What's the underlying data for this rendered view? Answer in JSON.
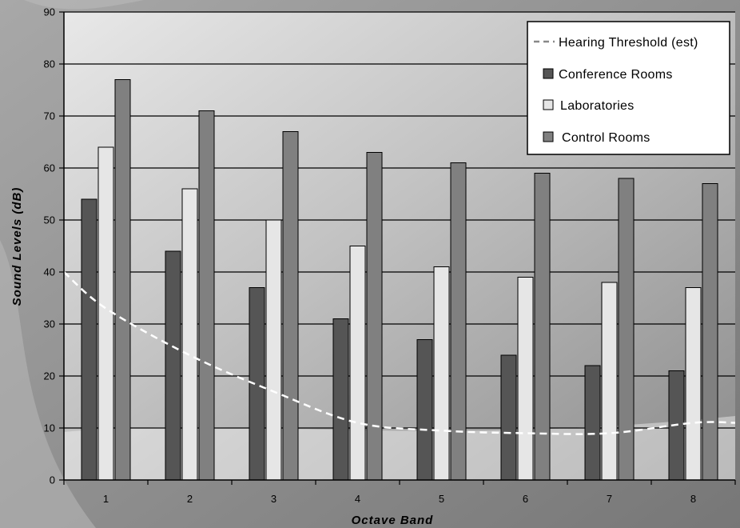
{
  "chart_data": {
    "type": "bar",
    "title": "",
    "xlabel": "Octave Band",
    "ylabel": "Sound Levels (dB)",
    "categories": [
      "1",
      "2",
      "3",
      "4",
      "5",
      "6",
      "7",
      "8"
    ],
    "ylim": [
      0,
      90
    ],
    "yticks": [
      0,
      10,
      20,
      30,
      40,
      50,
      60,
      70,
      80,
      90
    ],
    "grid": true,
    "legend_position": "top-right",
    "series": [
      {
        "name": "Conference Rooms",
        "type": "bar",
        "color": "#555555",
        "values": [
          54,
          44,
          37,
          31,
          27,
          24,
          22,
          21
        ]
      },
      {
        "name": "Laboratories",
        "type": "bar",
        "color": "#e6e6e6",
        "values": [
          64,
          56,
          50,
          45,
          41,
          39,
          38,
          37
        ]
      },
      {
        "name": "Control Rooms",
        "type": "bar",
        "color": "#808080",
        "values": [
          77,
          71,
          67,
          63,
          61,
          59,
          58,
          57
        ]
      },
      {
        "name": "Hearing Threshold (est)",
        "type": "line",
        "style": "dashed",
        "color": "#ffffff",
        "x": [
          0.5,
          1,
          2,
          3,
          4,
          5,
          6,
          7,
          8,
          8.5
        ],
        "values": [
          40,
          33,
          24,
          17,
          11,
          9.5,
          9,
          9,
          11,
          11
        ]
      }
    ]
  }
}
